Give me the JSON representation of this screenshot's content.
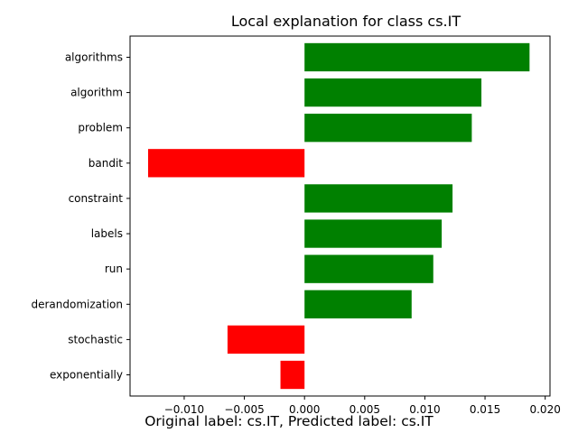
{
  "chart_data": {
    "type": "bar",
    "orientation": "horizontal",
    "title": "Local explanation for class cs.IT",
    "categories": [
      "algorithms",
      "algorithm",
      "problem",
      "bandit",
      "constraint",
      "labels",
      "run",
      "derandomization",
      "stochastic",
      "exponentially"
    ],
    "values": [
      0.0187,
      0.0147,
      0.0139,
      -0.013,
      0.0123,
      0.0114,
      0.0107,
      0.0089,
      -0.0064,
      -0.002
    ],
    "xlim": [
      -0.0145,
      0.0204
    ],
    "xticks": [
      -0.01,
      -0.005,
      0.0,
      0.005,
      0.01,
      0.015,
      0.02
    ],
    "xtick_labels": [
      "−0.010",
      "−0.005",
      "0.000",
      "0.005",
      "0.010",
      "0.015",
      "0.020"
    ],
    "xlabel": "Original label: cs.IT, Predicted label: cs.IT",
    "ylabel": "",
    "grid": false,
    "colors": {
      "positive": "#008000",
      "negative": "#ff0000"
    }
  }
}
